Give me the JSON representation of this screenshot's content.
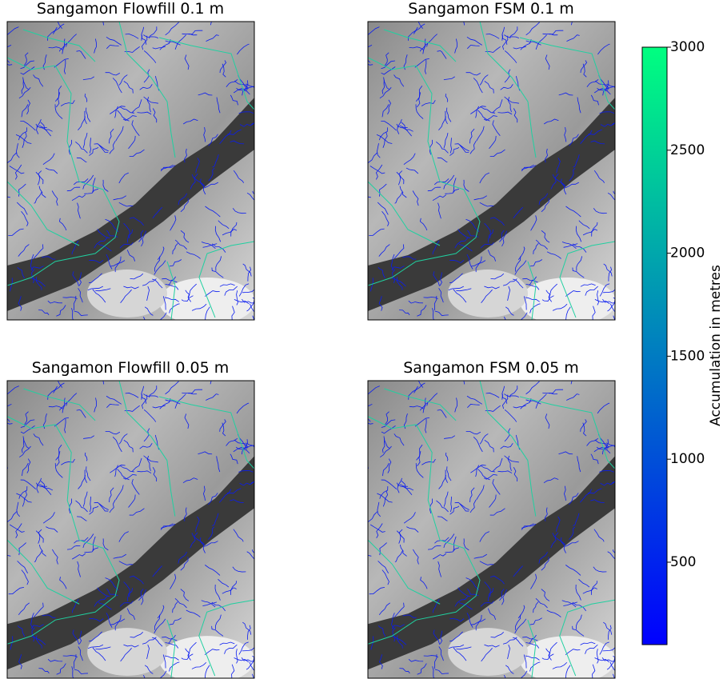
{
  "panels": [
    {
      "title": "Sangamon Flowfill 0.1 m"
    },
    {
      "title": "Sangamon FSM 0.1 m"
    },
    {
      "title": "Sangamon Flowfill 0.05 m"
    },
    {
      "title": "Sangamon FSM 0.05 m"
    }
  ],
  "colorbar": {
    "label": "Accumulation in metres",
    "lim": [
      100,
      3000
    ],
    "ticks": [
      500,
      1000,
      1500,
      2000,
      2500,
      3000
    ],
    "colors": [
      "#0000ff",
      "#00ff80"
    ]
  }
}
